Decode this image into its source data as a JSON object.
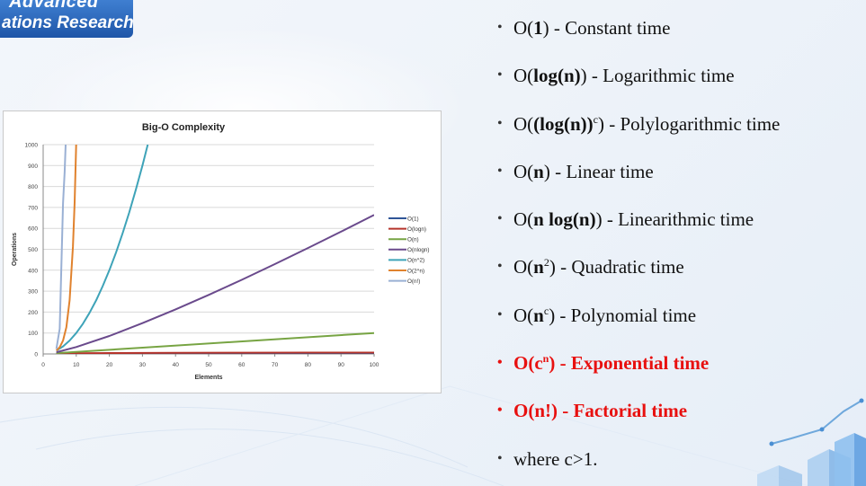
{
  "logo": {
    "line1": "Advanced",
    "line2": "ations  Research"
  },
  "bullets": {
    "b1": {
      "p1": "O(",
      "b": "1",
      "p2": ") - Constant time"
    },
    "b2": {
      "p1": "O(",
      "b": "log(n)",
      "p2": ") - Logarithmic time"
    },
    "b3": {
      "p1": "O(",
      "b": "(log(n))",
      "sup": "c",
      "p2": ") - Polylogarithmic time"
    },
    "b4": {
      "p1": "O(",
      "b": "n",
      "p2": ") - Linear time"
    },
    "b5": {
      "p1": "O(",
      "b": "n log(n)",
      "p2": ") - Linearithmic time"
    },
    "b6": {
      "p1": "O(",
      "b": "n",
      "sup": "2",
      "p2": ") - Quadratic time"
    },
    "b7": {
      "p1": "O(",
      "b": "n",
      "sup": "c",
      "p2": ") - Polynomial time"
    },
    "b8": {
      "p1": "O(c",
      "sup": "n",
      "p2": ") - Exponential time"
    },
    "b9": {
      "text": "O(n!) - Factorial time"
    },
    "b10": {
      "text": "where c>1."
    }
  },
  "colors": {
    "highlight": "#e8100f",
    "logo_bg": "#1f56a8"
  },
  "chart_data": {
    "type": "line",
    "title": "Big-O Complexity",
    "xlabel": "Elements",
    "ylabel": "Operations",
    "xlim": [
      0,
      100
    ],
    "ylim": [
      0,
      1000
    ],
    "x_ticks": [
      0,
      10,
      20,
      30,
      40,
      50,
      60,
      70,
      80,
      90,
      100
    ],
    "y_ticks": [
      0,
      100,
      200,
      300,
      400,
      500,
      600,
      700,
      800,
      900,
      1000
    ],
    "grid": "horizontal",
    "legend_position": "right",
    "series": [
      {
        "name": "O(1)",
        "color": "#2f5597",
        "x": [
          4,
          100
        ],
        "y": [
          1,
          1
        ]
      },
      {
        "name": "O(logn)",
        "color": "#b5332a",
        "x": [
          4,
          10,
          20,
          40,
          60,
          80,
          100
        ],
        "y": [
          2,
          3.3,
          4.3,
          5.3,
          5.9,
          6.3,
          6.6
        ]
      },
      {
        "name": "O(n)",
        "color": "#77a443",
        "x": [
          4,
          100
        ],
        "y": [
          4,
          100
        ]
      },
      {
        "name": "O(nlogn)",
        "color": "#6a4a8c",
        "x": [
          4,
          10,
          20,
          30,
          40,
          50,
          60,
          70,
          80,
          90,
          100
        ],
        "y": [
          8,
          33,
          86,
          147,
          213,
          282,
          354,
          429,
          506,
          584,
          664
        ]
      },
      {
        "name": "O(n^2)",
        "color": "#3ea3b8",
        "x": [
          4,
          6,
          8,
          10,
          12,
          14,
          16,
          18,
          20,
          22,
          24,
          26,
          28,
          30,
          31.6
        ],
        "y": [
          16,
          36,
          64,
          100,
          144,
          196,
          256,
          324,
          400,
          484,
          576,
          676,
          784,
          900,
          1000
        ]
      },
      {
        "name": "O(2^n)",
        "color": "#e0822e",
        "x": [
          4,
          5,
          6,
          7,
          8,
          9,
          9.5,
          9.97
        ],
        "y": [
          16,
          32,
          64,
          128,
          256,
          512,
          724,
          1000
        ]
      },
      {
        "name": "O(n!)",
        "color": "#9ab0d4",
        "x": [
          4,
          5,
          6,
          6.5,
          6.8
        ],
        "y": [
          24,
          120,
          720,
          870,
          1000
        ]
      }
    ]
  }
}
